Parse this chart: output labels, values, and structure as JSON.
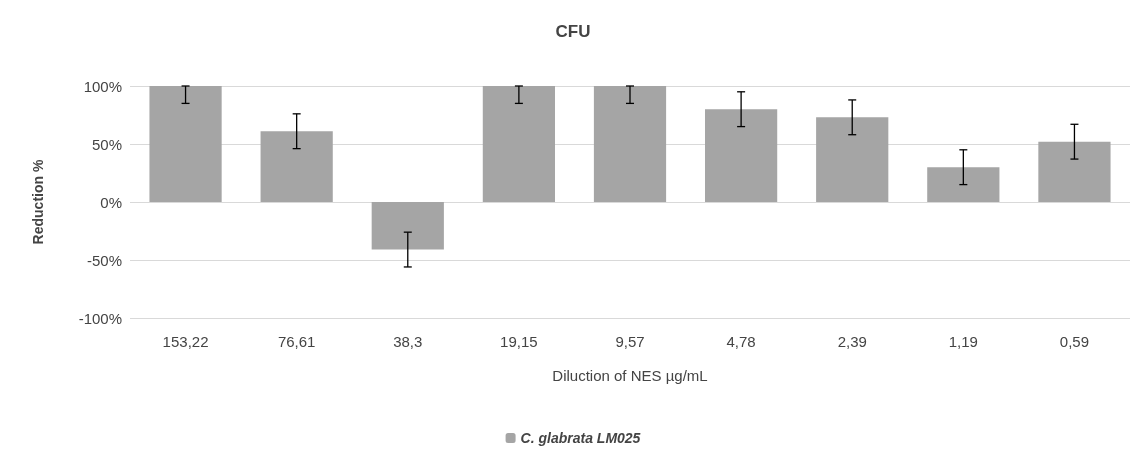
{
  "chart_data": {
    "type": "bar",
    "title": "CFU",
    "xlabel": "Diluction of NES µg/mL",
    "ylabel": "Reduction %",
    "categories": [
      "153,22",
      "76,61",
      "38,3",
      "19,15",
      "9,57",
      "4,78",
      "2,39",
      "1,19",
      "0,59"
    ],
    "series": [
      {
        "name": "C. glabrata LM025",
        "color": "#a5a5a5",
        "values": [
          100,
          61,
          -41,
          100,
          100,
          80,
          73,
          30,
          52
        ],
        "errors": [
          [
            85,
            100
          ],
          15,
          15,
          [
            85,
            100
          ],
          [
            85,
            100
          ],
          15,
          15,
          15,
          15
        ]
      }
    ],
    "ylim": [
      -100,
      100
    ],
    "yticks": [
      {
        "value": -100,
        "label": "-100%"
      },
      {
        "value": -50,
        "label": "-50%"
      },
      {
        "value": 0,
        "label": "0%"
      },
      {
        "value": 50,
        "label": "50%"
      },
      {
        "value": 100,
        "label": "100%"
      }
    ],
    "grid": "y",
    "legend": "bottom"
  }
}
